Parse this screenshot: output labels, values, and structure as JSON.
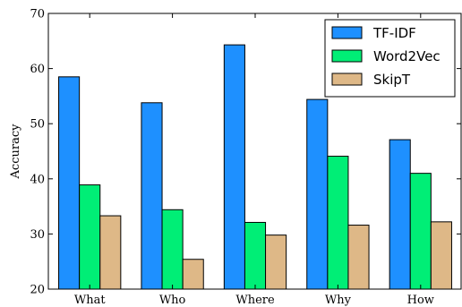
{
  "chart_data": {
    "type": "bar",
    "categories": [
      "What",
      "Who",
      "Where",
      "Why",
      "How"
    ],
    "series": [
      {
        "name": "TF-IDF",
        "values": [
          58.5,
          53.8,
          64.3,
          54.4,
          47.1
        ],
        "color": "#1e90ff"
      },
      {
        "name": "Word2Vec",
        "values": [
          38.9,
          34.4,
          32.1,
          44.1,
          41.0
        ],
        "color": "#00ee76"
      },
      {
        "name": "SkipT",
        "values": [
          33.3,
          25.4,
          29.8,
          31.6,
          32.2
        ],
        "color": "#deb887"
      }
    ],
    "title": "",
    "xlabel": "",
    "ylabel": "Accuracy",
    "ylim": [
      20,
      70
    ],
    "yticks": [
      20,
      30,
      40,
      50,
      60,
      70
    ],
    "grid": false,
    "legend_position": "top-right"
  }
}
